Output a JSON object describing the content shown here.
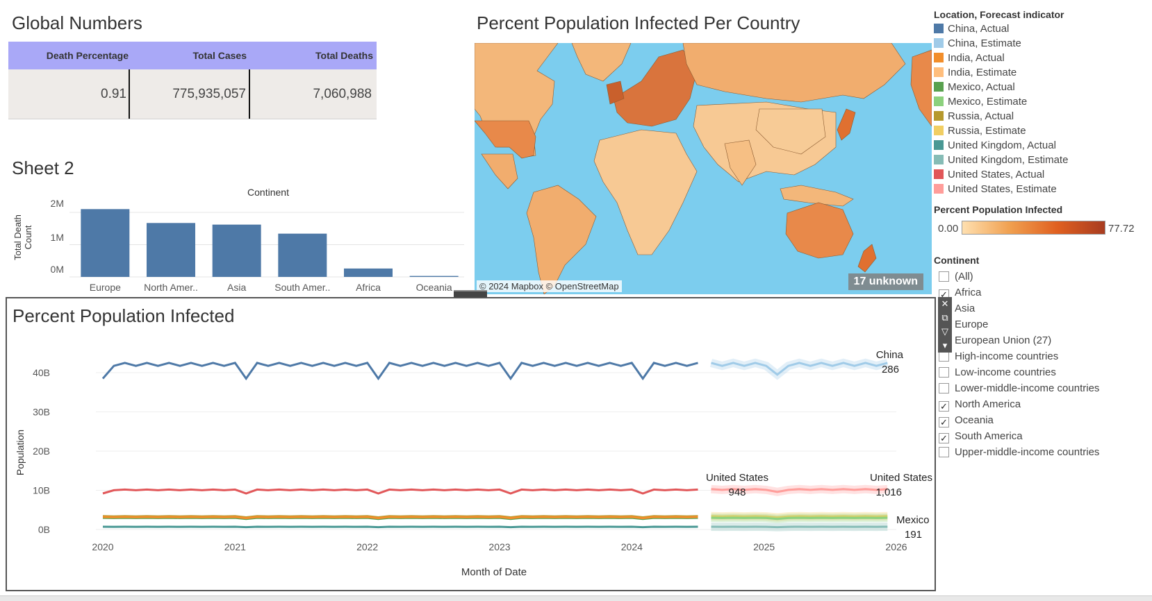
{
  "global_numbers": {
    "title": "Global Numbers",
    "headers": [
      "Death Percentage",
      "Total Cases",
      "Total Deaths"
    ],
    "values": [
      "0.91",
      "775,935,057",
      "7,060,988"
    ],
    "header_color": "#a9a8f7"
  },
  "sheet2": {
    "title": "Sheet 2",
    "column_header": "Continent",
    "y_label": "Total Death Count",
    "y_ticks": [
      "2M",
      "1M",
      "0M"
    ],
    "bar_color": "#4e79a7"
  },
  "map": {
    "title": "Percent Population Infected Per Country",
    "credit": "© 2024 Mapbox © OpenStreetMap",
    "unknown_badge": "17 unknown"
  },
  "legend": {
    "title": "Location, Forecast indicator",
    "items": [
      {
        "label": "China, Actual",
        "color": "#4e79a7"
      },
      {
        "label": "China, Estimate",
        "color": "#a0cbe8"
      },
      {
        "label": "India, Actual",
        "color": "#f28e2b"
      },
      {
        "label": "India, Estimate",
        "color": "#ffbe7d"
      },
      {
        "label": "Mexico, Actual",
        "color": "#59a14f"
      },
      {
        "label": "Mexico, Estimate",
        "color": "#8cd17d"
      },
      {
        "label": "Russia, Actual",
        "color": "#b6992d"
      },
      {
        "label": "Russia, Estimate",
        "color": "#f1ce63"
      },
      {
        "label": "United Kingdom, Actual",
        "color": "#499894"
      },
      {
        "label": "United Kingdom, Estimate",
        "color": "#86bcb6"
      },
      {
        "label": "United States, Actual",
        "color": "#e15759"
      },
      {
        "label": "United States, Estimate",
        "color": "#ff9d9a"
      }
    ],
    "gradient_title": "Percent Population Infected",
    "gradient_min": "0.00",
    "gradient_max": "77.72",
    "gradient_colors": [
      "#ffe0b0",
      "#f0a050",
      "#e06020",
      "#a83c20"
    ]
  },
  "continent_filter": {
    "title": "Continent",
    "items": [
      {
        "label": "(All)",
        "checked": false
      },
      {
        "label": "Africa",
        "checked": true
      },
      {
        "label": "Asia",
        "checked": true
      },
      {
        "label": "Europe",
        "checked": true
      },
      {
        "label": "European Union (27)",
        "checked": false
      },
      {
        "label": "High-income countries",
        "checked": false
      },
      {
        "label": "Low-income countries",
        "checked": false
      },
      {
        "label": "Lower-middle-income countries",
        "checked": false
      },
      {
        "label": "North America",
        "checked": true
      },
      {
        "label": "Oceania",
        "checked": true
      },
      {
        "label": "South America",
        "checked": true
      },
      {
        "label": "Upper-middle-income countries",
        "checked": false
      }
    ]
  },
  "ppi": {
    "title": "Percent Population Infected",
    "y_label": "Population",
    "x_label": "Month of Date",
    "y_ticks": [
      "40B",
      "30B",
      "20B",
      "10B",
      "0B"
    ],
    "x_ticks": [
      "2020",
      "2021",
      "2022",
      "2023",
      "2024",
      "2025",
      "2026"
    ],
    "labels": {
      "china_name": "China",
      "china_value": "286",
      "us_actual_name": "United States",
      "us_actual_value": "948",
      "us_est_name": "United States",
      "us_est_value": "1,016",
      "mexico_name": "Mexico",
      "mexico_value": "191"
    }
  },
  "chart_data": [
    {
      "type": "bar",
      "title": "",
      "xlabel": "Continent",
      "ylabel": "Total Death Count",
      "categories": [
        "Europe",
        "North Amer..",
        "Asia",
        "South Amer..",
        "Africa",
        "Oceania"
      ],
      "values": [
        2100000,
        1670000,
        1620000,
        1340000,
        260000,
        30000
      ],
      "ylim": [
        0,
        2300000
      ],
      "grid": true
    },
    {
      "type": "line",
      "title": "Percent Population Infected",
      "xlabel": "Month of Date",
      "ylabel": "Population",
      "xlim": [
        2020,
        2026
      ],
      "ylim": [
        0,
        45000000000
      ],
      "series": [
        {
          "name": "China, Actual",
          "color": "#4e79a7",
          "x_start": 2020.0,
          "x_end": 2024.5,
          "base": 42500000000,
          "low": 38500000000,
          "dips": [
            2020.0,
            2021.1,
            2022.1,
            2023.1,
            2024.1
          ]
        },
        {
          "name": "China, Estimate",
          "color": "#a0cbe8",
          "x_start": 2024.6,
          "x_end": 2025.95,
          "base": 42500000000,
          "low": 39500000000,
          "dips": [
            2025.1
          ]
        },
        {
          "name": "United States, Actual",
          "color": "#e15759",
          "x_start": 2020.0,
          "x_end": 2024.5,
          "base": 10200000000,
          "low": 9200000000,
          "dips": [
            2020.0,
            2021.1,
            2022.1,
            2023.1,
            2024.1
          ]
        },
        {
          "name": "United States, Estimate",
          "color": "#ff9d9a",
          "x_start": 2024.6,
          "x_end": 2025.95,
          "base": 10300000000,
          "low": 9600000000,
          "dips": [
            2025.1
          ]
        },
        {
          "name": "Russia, Actual",
          "color": "#b6992d",
          "x_start": 2020.0,
          "x_end": 2024.5,
          "base": 3400000000,
          "low": 3100000000,
          "dips": [
            2021.1,
            2022.1,
            2023.1,
            2024.1
          ]
        },
        {
          "name": "Russia, Estimate",
          "color": "#f1ce63",
          "x_start": 2024.6,
          "x_end": 2025.95,
          "base": 3400000000,
          "low": 3100000000,
          "dips": [
            2025.1
          ]
        },
        {
          "name": "Mexico, Actual",
          "color": "#59a14f",
          "x_start": 2020.0,
          "x_end": 2024.5,
          "base": 3000000000,
          "low": 2700000000,
          "dips": [
            2021.1,
            2022.1,
            2023.1,
            2024.1
          ]
        },
        {
          "name": "Mexico, Estimate",
          "color": "#8cd17d",
          "x_start": 2024.6,
          "x_end": 2025.95,
          "base": 3000000000,
          "low": 2700000000,
          "dips": [
            2025.1
          ]
        },
        {
          "name": "India, Actual",
          "color": "#f28e2b",
          "x_start": 2020.0,
          "x_end": 2024.5,
          "base": 3200000000,
          "low": 2900000000,
          "dips": [
            2021.1,
            2022.1,
            2023.1,
            2024.1
          ]
        },
        {
          "name": "United Kingdom, Actual",
          "color": "#499894",
          "x_start": 2020.0,
          "x_end": 2024.5,
          "base": 700000000,
          "low": 600000000,
          "dips": [
            2021.1,
            2022.1,
            2023.1,
            2024.1
          ]
        },
        {
          "name": "United Kingdom, Estimate",
          "color": "#86bcb6",
          "x_start": 2024.6,
          "x_end": 2025.95,
          "base": 700000000,
          "low": 600000000,
          "dips": [
            2025.1
          ]
        }
      ]
    }
  ]
}
